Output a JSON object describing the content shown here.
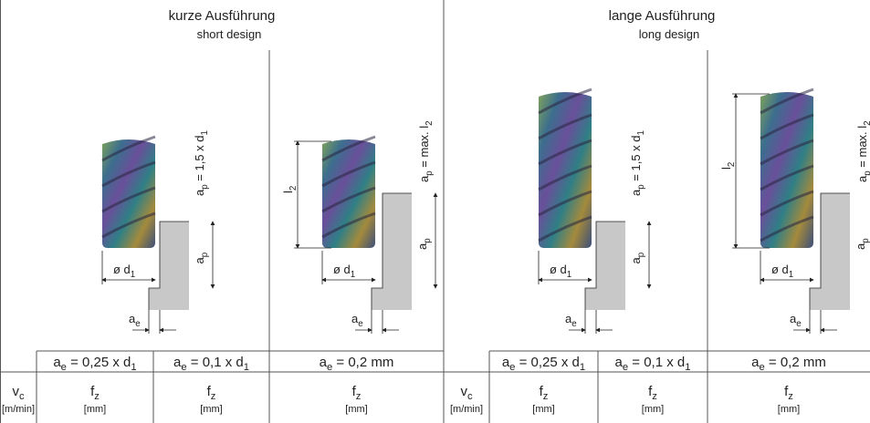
{
  "sections": [
    {
      "title": "kurze Ausführung",
      "subtitle": "short design",
      "diagrams": [
        {
          "ap_rule": [
            "a",
            {
              "sub": "p"
            },
            " = 1,5 x d",
            {
              "sub": "1"
            }
          ],
          "ap": [
            "a",
            {
              "sub": "p"
            }
          ],
          "d1": [
            "ø d",
            {
              "sub": "1"
            }
          ],
          "ae": [
            "a",
            {
              "sub": "e"
            }
          ]
        },
        {
          "l2": [
            "l",
            {
              "sub": "2"
            }
          ],
          "ap_rule": [
            "a",
            {
              "sub": "p"
            },
            " = max. l",
            {
              "sub": "2"
            }
          ],
          "ap": [
            "a",
            {
              "sub": "p"
            }
          ],
          "d1": [
            "ø d",
            {
              "sub": "1"
            }
          ],
          "ae": [
            "a",
            {
              "sub": "e"
            }
          ]
        }
      ],
      "conditions": [
        [
          "a",
          {
            "sub": "e"
          },
          " = 0,25 x d",
          {
            "sub": "1"
          }
        ],
        [
          "a",
          {
            "sub": "e"
          },
          " = 0,1 x d",
          {
            "sub": "1"
          }
        ],
        [
          "a",
          {
            "sub": "e"
          },
          " = 0,2 mm"
        ]
      ],
      "vc": {
        "symbol": [
          "v",
          {
            "sub": "c"
          }
        ],
        "unit": "[m/min]"
      },
      "fz": [
        {
          "symbol": [
            "f",
            {
              "sub": "z"
            }
          ],
          "unit": "[mm]"
        },
        {
          "symbol": [
            "f",
            {
              "sub": "z"
            }
          ],
          "unit": "[mm]"
        },
        {
          "symbol": [
            "f",
            {
              "sub": "z"
            }
          ],
          "unit": "[mm]"
        }
      ]
    },
    {
      "title": "lange Ausführung",
      "subtitle": "long design",
      "diagrams": [
        {
          "ap_rule": [
            "a",
            {
              "sub": "p"
            },
            " = 1,5 x d",
            {
              "sub": "1"
            }
          ],
          "ap": [
            "a",
            {
              "sub": "p"
            }
          ],
          "d1": [
            "ø d",
            {
              "sub": "1"
            }
          ],
          "ae": [
            "a",
            {
              "sub": "e"
            }
          ]
        },
        {
          "l2": [
            "l",
            {
              "sub": "2"
            }
          ],
          "ap_rule": [
            "a",
            {
              "sub": "p"
            },
            " = max. l",
            {
              "sub": "2"
            }
          ],
          "ap": [
            "a",
            {
              "sub": "p"
            }
          ],
          "d1": [
            "ø d",
            {
              "sub": "1"
            }
          ],
          "ae": [
            "a",
            {
              "sub": "e"
            }
          ]
        }
      ],
      "conditions": [
        [
          "a",
          {
            "sub": "e"
          },
          " = 0,25 x d",
          {
            "sub": "1"
          }
        ],
        [
          "a",
          {
            "sub": "e"
          },
          " = 0,1 x d",
          {
            "sub": "1"
          }
        ],
        [
          "a",
          {
            "sub": "e"
          },
          " = 0,2 mm"
        ]
      ],
      "vc": {
        "symbol": [
          "v",
          {
            "sub": "c"
          }
        ],
        "unit": "[m/min]"
      },
      "fz": [
        {
          "symbol": [
            "f",
            {
              "sub": "z"
            }
          ],
          "unit": "[mm]"
        },
        {
          "symbol": [
            "f",
            {
              "sub": "z"
            }
          ],
          "unit": "[mm]"
        },
        {
          "symbol": [
            "f",
            {
              "sub": "z"
            }
          ],
          "unit": "[mm]"
        }
      ]
    }
  ]
}
